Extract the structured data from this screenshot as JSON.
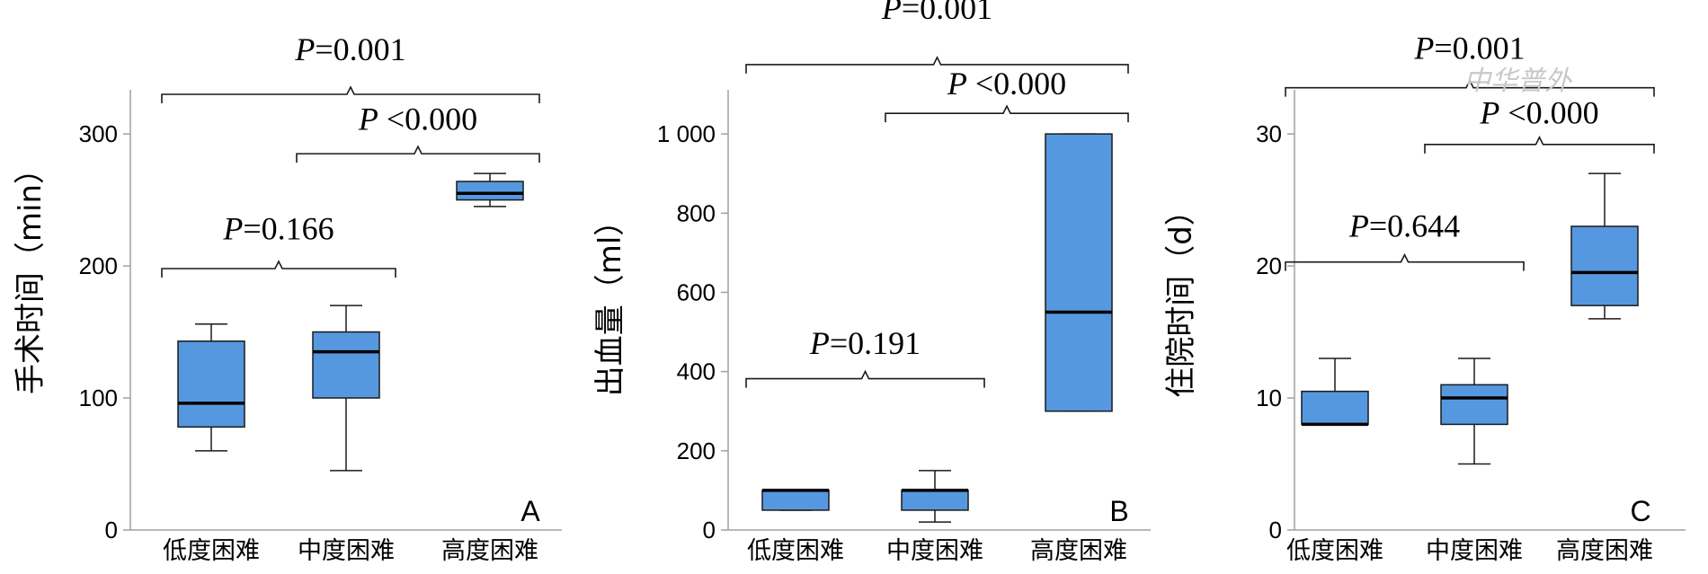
{
  "chart_data": [
    {
      "type": "box",
      "panel": "A",
      "ylabel": "手术时间（min）",
      "ylim": [
        0,
        330
      ],
      "yticks": [
        0,
        100,
        200,
        300
      ],
      "categories": [
        "低度困难",
        "中度困难",
        "高度困难"
      ],
      "boxes": [
        {
          "min": 60,
          "q1": 78,
          "median": 96,
          "q3": 143,
          "max": 156
        },
        {
          "min": 45,
          "q1": 100,
          "median": 135,
          "q3": 150,
          "max": 170
        },
        {
          "min": 245,
          "q1": 250,
          "median": 255,
          "q3": 264,
          "max": 270
        }
      ],
      "comparisons": [
        {
          "from": 0,
          "to": 1,
          "label": "=0.166",
          "y": 198,
          "text_y": 220
        },
        {
          "from": 1,
          "to": 2,
          "label": " <0.000",
          "y": 285,
          "text_y": 303
        },
        {
          "from": 0,
          "to": 2,
          "label": "=0.001",
          "y": 330,
          "text_y": 356
        }
      ]
    },
    {
      "type": "box",
      "panel": "B",
      "ylabel": "出血量（ml）",
      "ylim": [
        0,
        1100
      ],
      "yticks": [
        0,
        200,
        400,
        600,
        800,
        1000
      ],
      "ytick_labels": [
        "0",
        "200",
        "400",
        "600",
        "800",
        "1 000"
      ],
      "categories": [
        "低度困难",
        "中度困难",
        "高度困难"
      ],
      "boxes": [
        {
          "min": 50,
          "q1": 50,
          "median": 100,
          "q3": 100,
          "max": 100
        },
        {
          "min": 20,
          "q1": 50,
          "median": 100,
          "q3": 100,
          "max": 150
        },
        {
          "min": 300,
          "q1": 300,
          "median": 550,
          "q3": 1000,
          "max": 1000
        }
      ],
      "comparisons": [
        {
          "from": 0,
          "to": 1,
          "label": "=0.191",
          "y": 382,
          "text_y": 445
        },
        {
          "from": 1,
          "to": 2,
          "label": " <0.000",
          "y": 1052,
          "text_y": 1100
        },
        {
          "from": 0,
          "to": 2,
          "label": "=0.001",
          "y": 1175,
          "text_y": 1290
        }
      ]
    },
    {
      "type": "box",
      "panel": "C",
      "ylabel": "住院时间（d）",
      "ylim": [
        0,
        33
      ],
      "yticks": [
        0,
        10,
        20,
        30
      ],
      "categories": [
        "低度困难",
        "中度困难",
        "高度困难"
      ],
      "boxes": [
        {
          "min": 8,
          "q1": 8,
          "median": 8,
          "q3": 10.5,
          "max": 13
        },
        {
          "min": 5,
          "q1": 8,
          "median": 10,
          "q3": 11,
          "max": 13
        },
        {
          "min": 16,
          "q1": 17,
          "median": 19.5,
          "q3": 23,
          "max": 27
        }
      ],
      "comparisons": [
        {
          "from": 0,
          "to": 1,
          "label": "=0.644",
          "y": 20.3,
          "text_y": 22.2
        },
        {
          "from": 1,
          "to": 2,
          "label": " <0.000",
          "y": 29.2,
          "text_y": 30.8
        },
        {
          "from": 0,
          "to": 2,
          "label": "=0.001",
          "y": 33.5,
          "text_y": 35.7
        }
      ]
    }
  ],
  "p_symbol": "P",
  "watermark": "中华普外"
}
